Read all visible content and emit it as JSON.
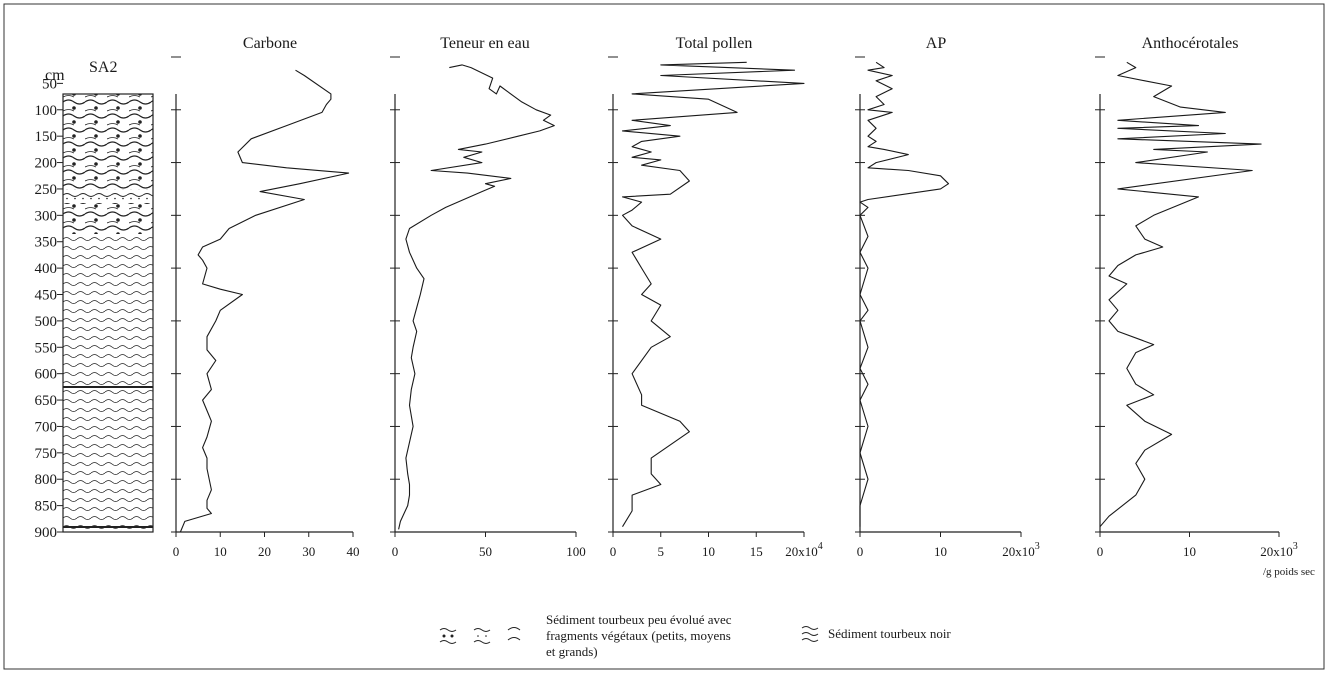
{
  "depth_axis": {
    "unit": "cm",
    "core_label": "SA2",
    "ticks": [
      50,
      100,
      150,
      200,
      250,
      300,
      350,
      400,
      450,
      500,
      550,
      600,
      650,
      700,
      750,
      800,
      850,
      900
    ]
  },
  "legend": {
    "item1": [
      "Sédiment tourbeux peu évolué avec",
      "fragments végétaux (petits, moyens",
      "et grands)"
    ],
    "item2": "Sédiment tourbeux noir"
  },
  "chart_data": [
    {
      "type": "line",
      "title": "Carbone",
      "x_ticks": [
        "0",
        "10",
        "20",
        "30",
        "40"
      ],
      "xlim": [
        0,
        40
      ],
      "ylim": [
        0,
        900
      ],
      "series": [
        {
          "x": [
            27,
            29,
            35,
            35,
            34,
            33,
            25,
            17,
            14,
            15,
            25,
            39,
            28,
            19,
            29,
            18,
            12,
            10,
            6,
            5,
            6,
            7,
            6,
            10,
            15,
            10,
            9,
            7,
            7,
            9,
            7,
            8,
            6,
            7,
            8,
            7,
            6,
            7,
            7,
            8,
            7,
            7,
            8,
            2,
            1
          ],
          "y": [
            25,
            35,
            70,
            80,
            90,
            105,
            130,
            155,
            180,
            200,
            210,
            220,
            240,
            255,
            270,
            300,
            325,
            345,
            360,
            375,
            385,
            400,
            430,
            440,
            450,
            480,
            500,
            530,
            555,
            575,
            600,
            630,
            650,
            670,
            690,
            720,
            740,
            760,
            780,
            820,
            840,
            855,
            865,
            880,
            900
          ]
        }
      ]
    },
    {
      "type": "line",
      "title": "Teneur en eau",
      "x_ticks": [
        "0",
        "50",
        "100"
      ],
      "xlim": [
        0,
        100
      ],
      "ylim": [
        0,
        900
      ],
      "series": [
        {
          "x": [
            30,
            37,
            42,
            54,
            52,
            56,
            58,
            62,
            70,
            78,
            86,
            82,
            88,
            80,
            68,
            50,
            35,
            48,
            38,
            48,
            20,
            40,
            64,
            50,
            55,
            48,
            28,
            20,
            8,
            6,
            8,
            12,
            16,
            14,
            12,
            10,
            12,
            10,
            9,
            11,
            9,
            8,
            10,
            8,
            6,
            7,
            8,
            8,
            7,
            3,
            2
          ],
          "y": [
            20,
            15,
            20,
            40,
            60,
            70,
            55,
            65,
            85,
            100,
            110,
            120,
            130,
            140,
            150,
            165,
            175,
            180,
            190,
            200,
            215,
            220,
            230,
            240,
            245,
            255,
            285,
            300,
            325,
            345,
            370,
            400,
            420,
            450,
            475,
            500,
            520,
            550,
            570,
            600,
            630,
            660,
            700,
            730,
            760,
            790,
            810,
            830,
            850,
            880,
            895
          ]
        }
      ]
    },
    {
      "type": "line",
      "title": "Total pollen",
      "x_ticks": [
        "0",
        "5",
        "10",
        "15",
        "20x10^4"
      ],
      "xlim": [
        0,
        20
      ],
      "ylim": [
        0,
        900
      ],
      "series": [
        {
          "x": [
            14,
            5,
            19,
            5,
            20,
            2,
            10,
            13,
            2,
            6,
            1,
            7,
            3,
            2,
            4,
            2,
            5,
            3,
            7,
            8,
            6,
            1,
            3,
            2,
            1,
            2,
            5,
            2,
            3,
            4,
            3,
            5,
            4,
            6,
            4,
            2,
            3,
            3,
            7,
            8,
            4,
            4,
            5,
            2,
            2,
            1
          ],
          "y": [
            10,
            15,
            25,
            35,
            50,
            70,
            80,
            105,
            120,
            130,
            140,
            150,
            160,
            170,
            180,
            190,
            195,
            205,
            215,
            235,
            260,
            265,
            275,
            290,
            300,
            320,
            345,
            370,
            400,
            430,
            450,
            470,
            500,
            530,
            550,
            600,
            640,
            660,
            690,
            710,
            760,
            790,
            810,
            830,
            860,
            890
          ]
        }
      ]
    },
    {
      "type": "line",
      "title": "AP",
      "x_ticks": [
        "0",
        "10",
        "20x10^3"
      ],
      "xlim": [
        0,
        20
      ],
      "ylim": [
        0,
        900
      ],
      "series": [
        {
          "x": [
            2,
            3,
            1,
            4,
            2,
            4,
            2,
            3,
            1,
            4,
            1,
            2,
            1,
            2,
            1,
            3,
            6,
            2,
            1,
            6,
            10,
            11,
            10,
            1,
            0,
            1,
            0,
            1,
            0,
            1,
            0,
            1,
            0,
            1,
            0,
            1,
            0,
            1,
            0,
            1,
            0,
            0
          ],
          "y": [
            10,
            20,
            25,
            35,
            45,
            60,
            75,
            90,
            100,
            105,
            120,
            135,
            150,
            160,
            170,
            175,
            185,
            200,
            210,
            215,
            225,
            240,
            250,
            270,
            275,
            285,
            300,
            340,
            370,
            400,
            450,
            480,
            500,
            550,
            590,
            620,
            650,
            700,
            750,
            800,
            850,
            890
          ]
        }
      ]
    },
    {
      "type": "line",
      "title": "Anthocérotales",
      "x_ticks": [
        "0",
        "10",
        "20x10^3"
      ],
      "xlim": [
        0,
        20
      ],
      "ylim": [
        0,
        900
      ],
      "series": [
        {
          "x": [
            3,
            4,
            2,
            5,
            8,
            6,
            9,
            14,
            2,
            11,
            2,
            14,
            2,
            18,
            6,
            12,
            4,
            17,
            2,
            11,
            6,
            4,
            5,
            7,
            4,
            2,
            1,
            3,
            1,
            2,
            1,
            2,
            6,
            4,
            3,
            4,
            6,
            3,
            5,
            8,
            5,
            4,
            5,
            4,
            1,
            0
          ],
          "y": [
            10,
            20,
            35,
            45,
            55,
            75,
            95,
            105,
            120,
            130,
            135,
            145,
            155,
            165,
            175,
            180,
            200,
            215,
            250,
            265,
            300,
            320,
            345,
            360,
            375,
            395,
            415,
            430,
            460,
            480,
            500,
            520,
            545,
            560,
            590,
            620,
            640,
            660,
            690,
            715,
            745,
            770,
            800,
            830,
            870,
            890
          ]
        }
      ]
    }
  ],
  "x_unit_note": "/g poids sec",
  "colors": {
    "ink": "#1a1a1a",
    "frame": "#333333"
  }
}
